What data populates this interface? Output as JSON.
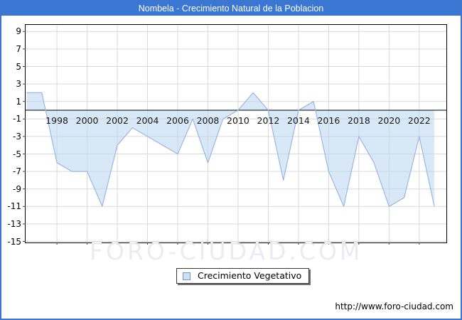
{
  "window": {
    "title": "Nombela - Crecimiento Natural de la Poblacion"
  },
  "legend": {
    "label": "Crecimiento Vegetativo"
  },
  "watermark": "FORO-CIUDAD.COM",
  "footer": {
    "url": "http://www.foro-ciudad.com"
  },
  "colors": {
    "title_bar": "#3b76d2",
    "frame_border": "#3b76d2",
    "grid": "#d9d9d9",
    "line": "#9cb6e4",
    "fill": "rgba(190,216,242,0.6)",
    "axis": "#000000",
    "tick": "#444444",
    "watermark": "#eaebf3"
  },
  "chart_data": {
    "type": "area",
    "title": "Nombela - Crecimiento Natural de la Poblacion",
    "series_name": "Crecimiento Vegetativo",
    "x": [
      1996,
      1997,
      1998,
      1999,
      2000,
      2001,
      2002,
      2003,
      2004,
      2005,
      2006,
      2007,
      2008,
      2009,
      2010,
      2011,
      2012,
      2013,
      2014,
      2015,
      2016,
      2017,
      2018,
      2019,
      2020,
      2021,
      2022,
      2023
    ],
    "values": [
      2,
      2,
      -6,
      -7,
      -7,
      -11,
      -4,
      -2,
      -3,
      -4,
      -5,
      -1,
      -6,
      -1,
      0,
      2,
      0,
      -8,
      0,
      1,
      -7,
      -11,
      -3,
      -6,
      -11,
      -10,
      -3,
      -11
    ],
    "ylim": [
      -15,
      9
    ],
    "y_ticks": [
      9,
      7,
      5,
      3,
      1,
      -1,
      -3,
      -5,
      -7,
      -9,
      -11,
      -13,
      -15
    ],
    "x_tick_years": [
      1998,
      2000,
      2002,
      2004,
      2006,
      2008,
      2010,
      2012,
      2014,
      2016,
      2018,
      2020,
      2022
    ],
    "grid": true,
    "zero_line": true,
    "fill_to_zero": true,
    "legend_position": "bottom-center"
  }
}
